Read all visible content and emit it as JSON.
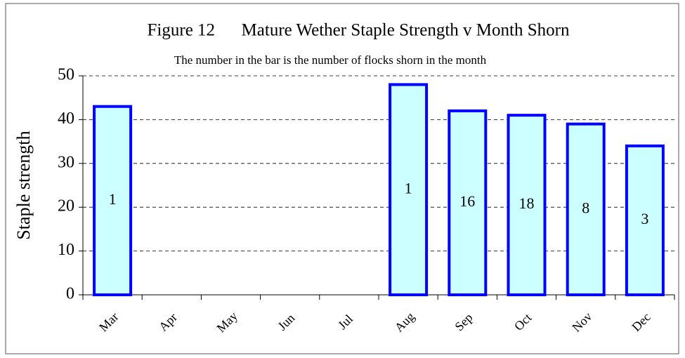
{
  "chart_data": {
    "type": "bar",
    "title": "Figure 12      Mature Wether Staple Strength v Month Shorn",
    "subtitle": "The number in the bar is the number of flocks shorn in the month",
    "y_label": "Staple strength",
    "categories": [
      "Mar",
      "Apr",
      "May",
      "Jun",
      "Jul",
      "Aug",
      "Sep",
      "Oct",
      "Nov",
      "Dec"
    ],
    "values": [
      43,
      null,
      null,
      null,
      null,
      48,
      42,
      41,
      39,
      34
    ],
    "flock_counts": [
      1,
      null,
      null,
      null,
      null,
      1,
      16,
      18,
      8,
      3
    ],
    "color": "#ccffff",
    "edge_color": "#0000ff",
    "ylim": [
      0,
      50
    ],
    "yticks": [
      0,
      10,
      20,
      30,
      40,
      50
    ],
    "grid": true
  }
}
